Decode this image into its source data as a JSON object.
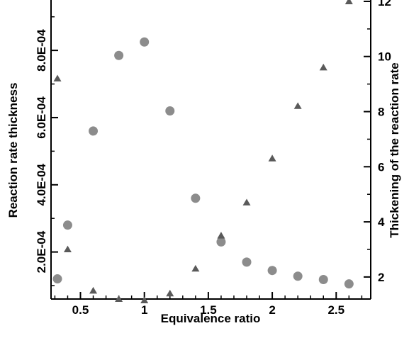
{
  "chart_data": {
    "type": "scatter",
    "xlabel": "Equivalence ratio",
    "ylabel_left": "Reaction rate thickness",
    "ylabel_right": "Thickening of the reaction rate",
    "xlim": [
      0.27,
      2.77
    ],
    "ylim_left": [
      6e-05,
      0.00095
    ],
    "ylim_right": [
      1.2,
      12.05
    ],
    "x_ticks": [
      {
        "value": 0.5,
        "label": "0.5"
      },
      {
        "value": 1,
        "label": "1"
      },
      {
        "value": 1.5,
        "label": "1.5"
      },
      {
        "value": 2,
        "label": "2"
      },
      {
        "value": 2.5,
        "label": "2.5"
      }
    ],
    "left_ticks": [
      {
        "value": 0.0002,
        "label": "2.0E-04"
      },
      {
        "value": 0.0004,
        "label": "4.0E-04"
      },
      {
        "value": 0.0006,
        "label": "6.0E-04"
      },
      {
        "value": 0.0008,
        "label": "8.0E-04"
      }
    ],
    "right_ticks": [
      {
        "value": 2,
        "label": "2"
      },
      {
        "value": 4,
        "label": "4"
      },
      {
        "value": 6,
        "label": "6"
      },
      {
        "value": 8,
        "label": "8"
      },
      {
        "value": 10,
        "label": "10"
      },
      {
        "value": 12,
        "label": "12"
      }
    ],
    "series": [
      {
        "marker": "circle",
        "axis": "left",
        "color": "#8c8c8c",
        "points": [
          {
            "x": 0.32,
            "y": 0.00012
          },
          {
            "x": 0.4,
            "y": 0.00028
          },
          {
            "x": 0.6,
            "y": 0.00056
          },
          {
            "x": 0.8,
            "y": 0.000785
          },
          {
            "x": 1.0,
            "y": 0.000825
          },
          {
            "x": 1.2,
            "y": 0.00062
          },
          {
            "x": 1.4,
            "y": 0.00036
          },
          {
            "x": 1.6,
            "y": 0.00023
          },
          {
            "x": 1.8,
            "y": 0.00017
          },
          {
            "x": 2.0,
            "y": 0.000145
          },
          {
            "x": 2.2,
            "y": 0.000128
          },
          {
            "x": 2.4,
            "y": 0.000118
          },
          {
            "x": 2.6,
            "y": 0.000105
          }
        ]
      },
      {
        "marker": "triangle",
        "axis": "right",
        "color": "#5a5a5a",
        "points": [
          {
            "x": 0.32,
            "y": 9.2
          },
          {
            "x": 0.4,
            "y": 3.0
          },
          {
            "x": 0.6,
            "y": 1.5
          },
          {
            "x": 0.8,
            "y": 1.2
          },
          {
            "x": 1.0,
            "y": 1.15
          },
          {
            "x": 1.2,
            "y": 1.4
          },
          {
            "x": 1.4,
            "y": 2.3
          },
          {
            "x": 1.6,
            "y": 3.5
          },
          {
            "x": 1.8,
            "y": 4.7
          },
          {
            "x": 2.0,
            "y": 6.3
          },
          {
            "x": 2.2,
            "y": 8.2
          },
          {
            "x": 2.4,
            "y": 9.6
          },
          {
            "x": 2.6,
            "y": 12.0
          }
        ]
      }
    ]
  }
}
